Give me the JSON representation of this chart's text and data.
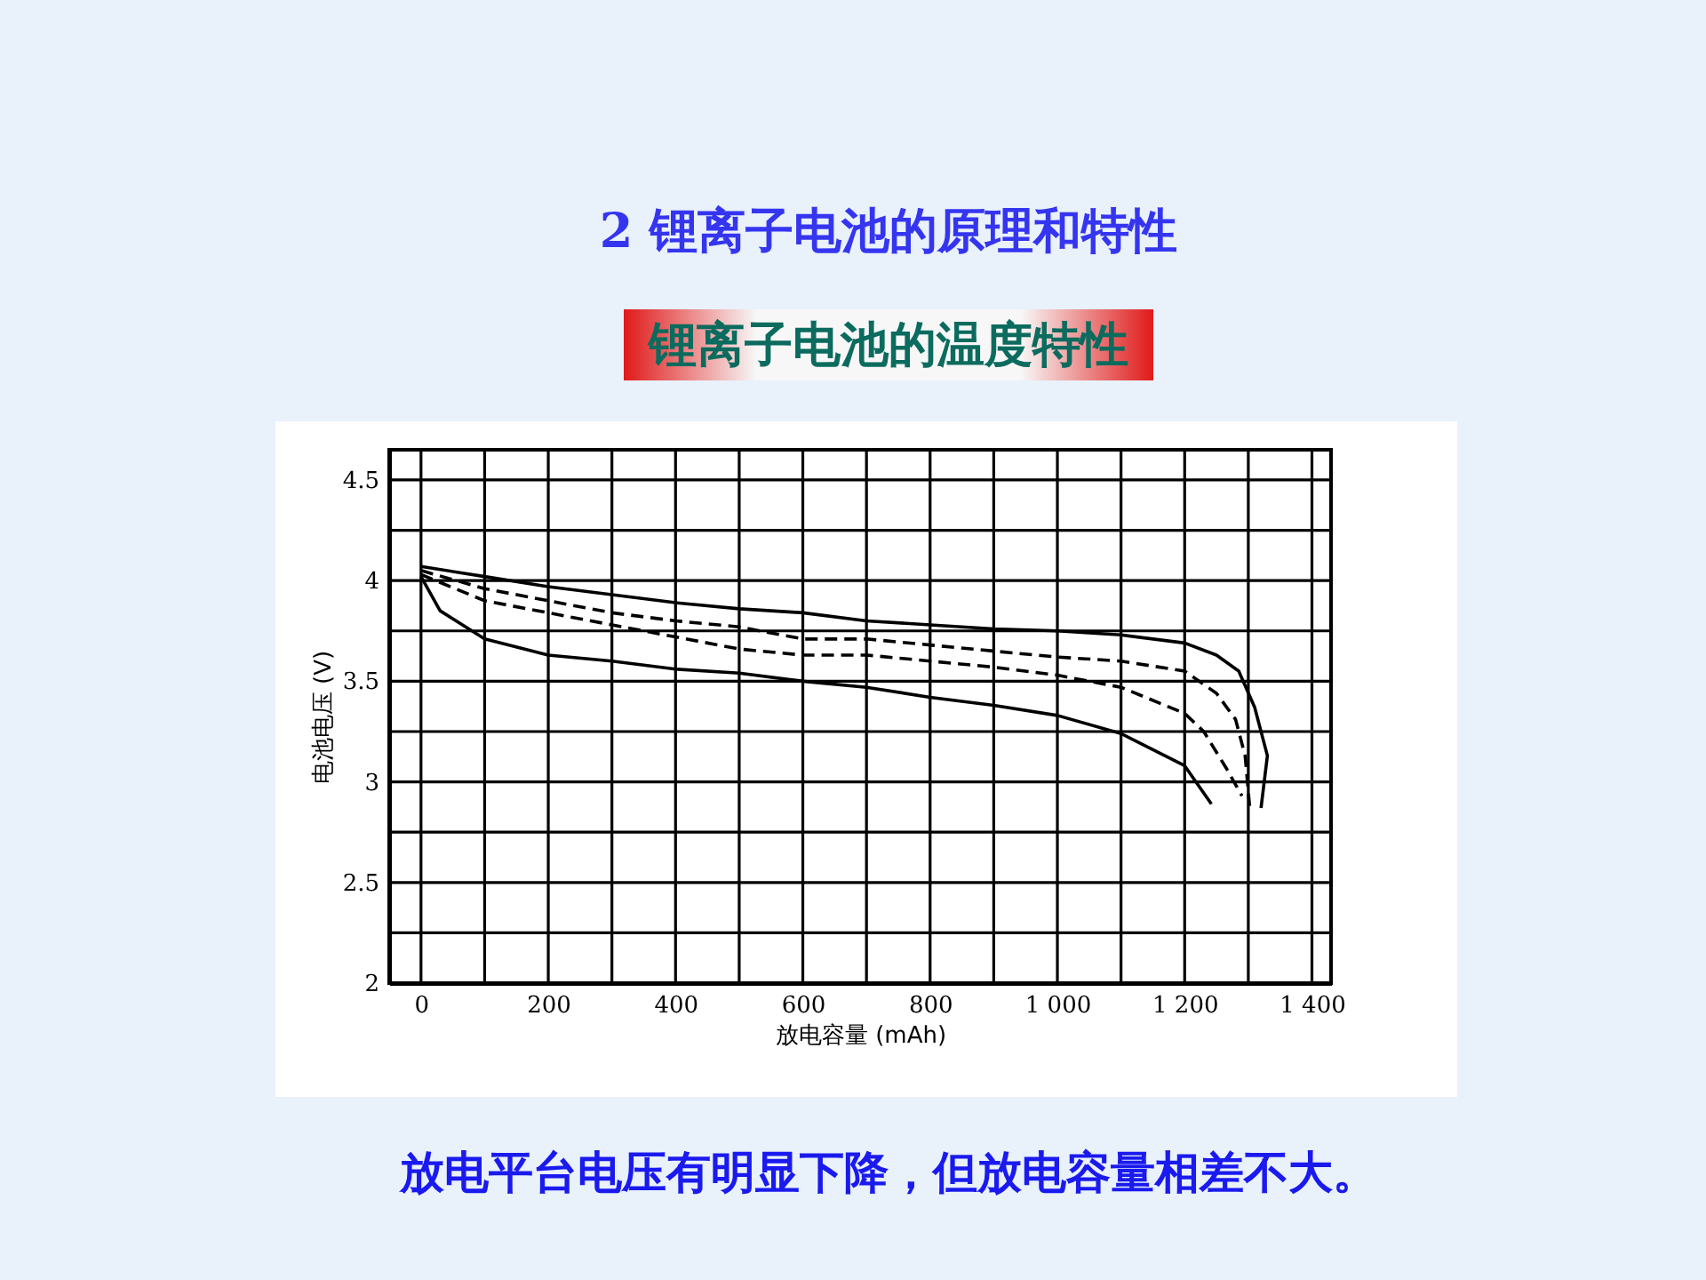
{
  "chart_data": {
    "type": "line",
    "title": "2 锂离子电池的原理和特性",
    "subtitle": "锂离子电池的温度特性",
    "xlabel": "放电容量 (mAh)",
    "ylabel": "电池电压 (V)",
    "annotations": [
      "放电平台电压有明显下降，但放电容量相差不大。"
    ],
    "xlim": [
      -50,
      1430
    ],
    "ylim": [
      2,
      4.65
    ],
    "xticks": [
      0,
      {
        "value": 100,
        "label": null
      },
      200,
      {
        "value": 300,
        "label": null
      },
      400,
      {
        "value": 500,
        "label": null
      },
      600,
      {
        "value": 700,
        "label": null
      },
      800,
      {
        "value": 900,
        "label": null
      },
      {
        "value": 1000,
        "label": "1 000"
      },
      {
        "value": 1100,
        "label": null
      },
      {
        "value": 1200,
        "label": "1 200"
      },
      {
        "value": 1300,
        "label": null
      },
      {
        "value": 1400,
        "label": "1 400"
      }
    ],
    "yticks": [
      2,
      {
        "value": 2.25,
        "label": null
      },
      2.5,
      {
        "value": 2.75,
        "label": null
      },
      3,
      {
        "value": 3.25,
        "label": null
      },
      3.5,
      {
        "value": 3.75,
        "label": null
      },
      4,
      {
        "value": 4.25,
        "label": null
      },
      4.5
    ],
    "grid": true,
    "marker": "none",
    "series": [
      {
        "color": "#000000",
        "line_style": "solid",
        "x": [
          0,
          100,
          200,
          300,
          400,
          500,
          600,
          700,
          800,
          900,
          1000,
          1100,
          1200,
          1250,
          1285,
          1310,
          1330,
          1320
        ],
        "values": [
          4.07,
          4.02,
          3.97,
          3.93,
          3.89,
          3.86,
          3.84,
          3.8,
          3.78,
          3.76,
          3.75,
          3.73,
          3.69,
          3.63,
          3.55,
          3.37,
          3.13,
          2.87
        ]
      },
      {
        "color": "#000000",
        "line_style": "dashed",
        "x": [
          0,
          100,
          200,
          300,
          400,
          500,
          600,
          700,
          800,
          900,
          1000,
          1100,
          1200,
          1250,
          1280,
          1295,
          1302
        ],
        "values": [
          4.05,
          3.96,
          3.9,
          3.84,
          3.8,
          3.77,
          3.71,
          3.71,
          3.68,
          3.65,
          3.62,
          3.6,
          3.55,
          3.44,
          3.31,
          3.13,
          2.88
        ]
      },
      {
        "color": "#000000",
        "line_style": "dashed",
        "x": [
          0,
          100,
          200,
          300,
          400,
          500,
          600,
          700,
          800,
          900,
          1000,
          1100,
          1200,
          1230,
          1265,
          1290
        ],
        "values": [
          4.03,
          3.9,
          3.84,
          3.78,
          3.72,
          3.66,
          3.63,
          3.63,
          3.6,
          3.57,
          3.53,
          3.47,
          3.34,
          3.25,
          3.07,
          2.93
        ]
      },
      {
        "color": "#000000",
        "line_style": "solid",
        "x": [
          0,
          30,
          100,
          200,
          300,
          400,
          500,
          600,
          700,
          800,
          900,
          1000,
          1100,
          1200,
          1242
        ],
        "values": [
          4.02,
          3.85,
          3.71,
          3.63,
          3.6,
          3.56,
          3.54,
          3.5,
          3.47,
          3.42,
          3.38,
          3.33,
          3.24,
          3.08,
          2.89
        ]
      }
    ]
  }
}
